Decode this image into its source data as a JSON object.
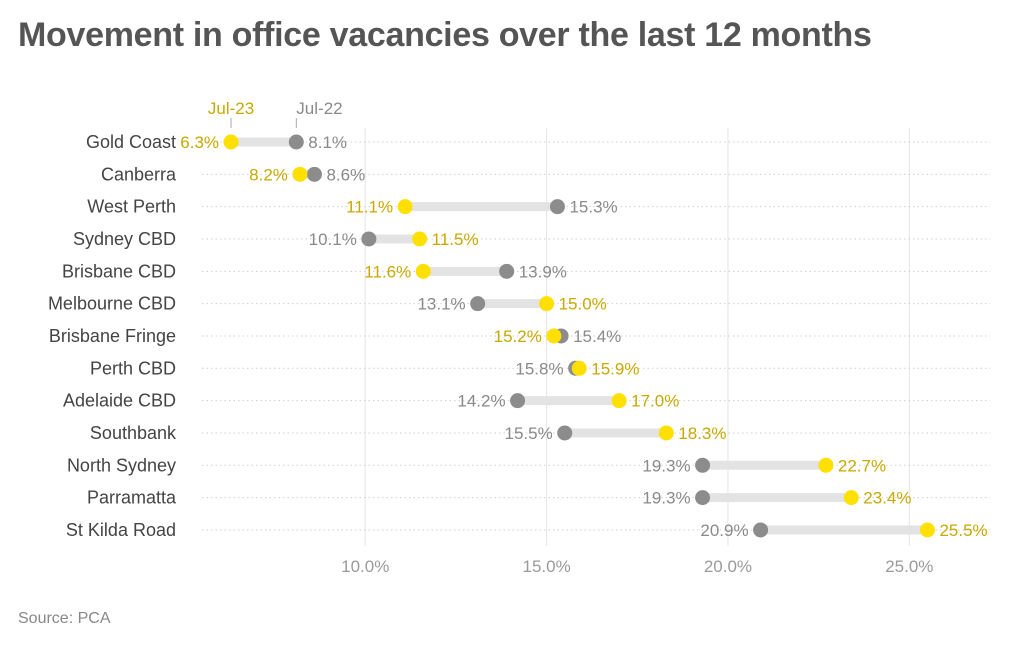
{
  "title": "Movement in office vacancies over the last 12 months",
  "source": "Source: PCA",
  "colors": {
    "jul23": "#FFE000",
    "jul22": "#8C8C8C",
    "connector": "#E3E3E3",
    "jul23_text": "#C9A800",
    "jul22_text": "#8A8A8A"
  },
  "chart_data": {
    "type": "dumbbell",
    "legend": [
      "Jul-23",
      "Jul-22"
    ],
    "categories": [
      "Gold Coast",
      "Canberra",
      "West Perth",
      "Sydney CBD",
      "Brisbane CBD",
      "Melbourne CBD",
      "Brisbane Fringe",
      "Perth CBD",
      "Adelaide CBD",
      "Southbank",
      "North Sydney",
      "Parramatta",
      "St Kilda Road"
    ],
    "series": [
      {
        "name": "Jul-23",
        "values": [
          6.3,
          8.2,
          11.1,
          11.5,
          11.6,
          15.0,
          15.2,
          15.9,
          17.0,
          18.3,
          22.7,
          23.4,
          25.5
        ],
        "labels": [
          "6.3%",
          "8.2%",
          "11.1%",
          "11.5%",
          "11.6%",
          "15.0%",
          "15.2%",
          "15.9%",
          "17.0%",
          "18.3%",
          "22.7%",
          "23.4%",
          "25.5%"
        ]
      },
      {
        "name": "Jul-22",
        "values": [
          8.1,
          8.6,
          15.3,
          10.1,
          13.9,
          13.1,
          15.4,
          15.8,
          14.2,
          15.5,
          19.3,
          19.3,
          20.9
        ],
        "labels": [
          "8.1%",
          "8.6%",
          "15.3%",
          "10.1%",
          "13.9%",
          "13.1%",
          "15.4%",
          "15.8%",
          "14.2%",
          "15.5%",
          "19.3%",
          "19.3%",
          "20.9%"
        ]
      }
    ],
    "x_ticks": [
      10,
      15,
      20,
      25
    ],
    "x_tick_labels": [
      "10.0%",
      "15.0%",
      "20.0%",
      "25.0%"
    ],
    "xlim": [
      5.5,
      27.5
    ],
    "grid": true,
    "legend_placement": "top, above first row"
  }
}
